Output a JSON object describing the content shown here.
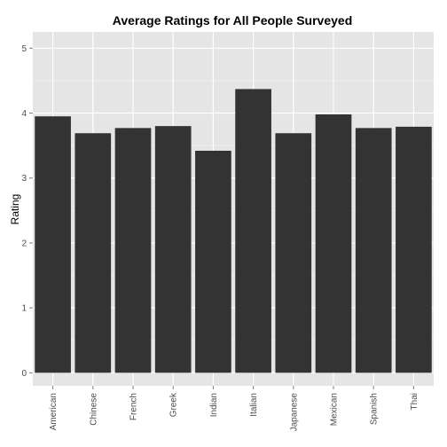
{
  "chart_data": {
    "type": "bar",
    "title": "Average Ratings for All People Surveyed",
    "xlabel": "",
    "ylabel": "Rating",
    "categories": [
      "American",
      "Chinese",
      "French",
      "Greek",
      "Indian",
      "Italian",
      "Japanese",
      "Mexican",
      "Spanish",
      "Thai"
    ],
    "values": [
      3.95,
      3.69,
      3.77,
      3.8,
      3.42,
      4.37,
      3.69,
      3.98,
      3.77,
      3.79
    ],
    "ylim": [
      -0.2,
      5.25
    ],
    "yticks": [
      0,
      1,
      2,
      3,
      4,
      5
    ],
    "grid": true,
    "colors": {
      "panel": "#e5e5e5",
      "bar": "#333333",
      "grid_major": "#ffffff",
      "grid_minor": "#f2f2f2",
      "tick_text": "#4d4d4d"
    }
  }
}
